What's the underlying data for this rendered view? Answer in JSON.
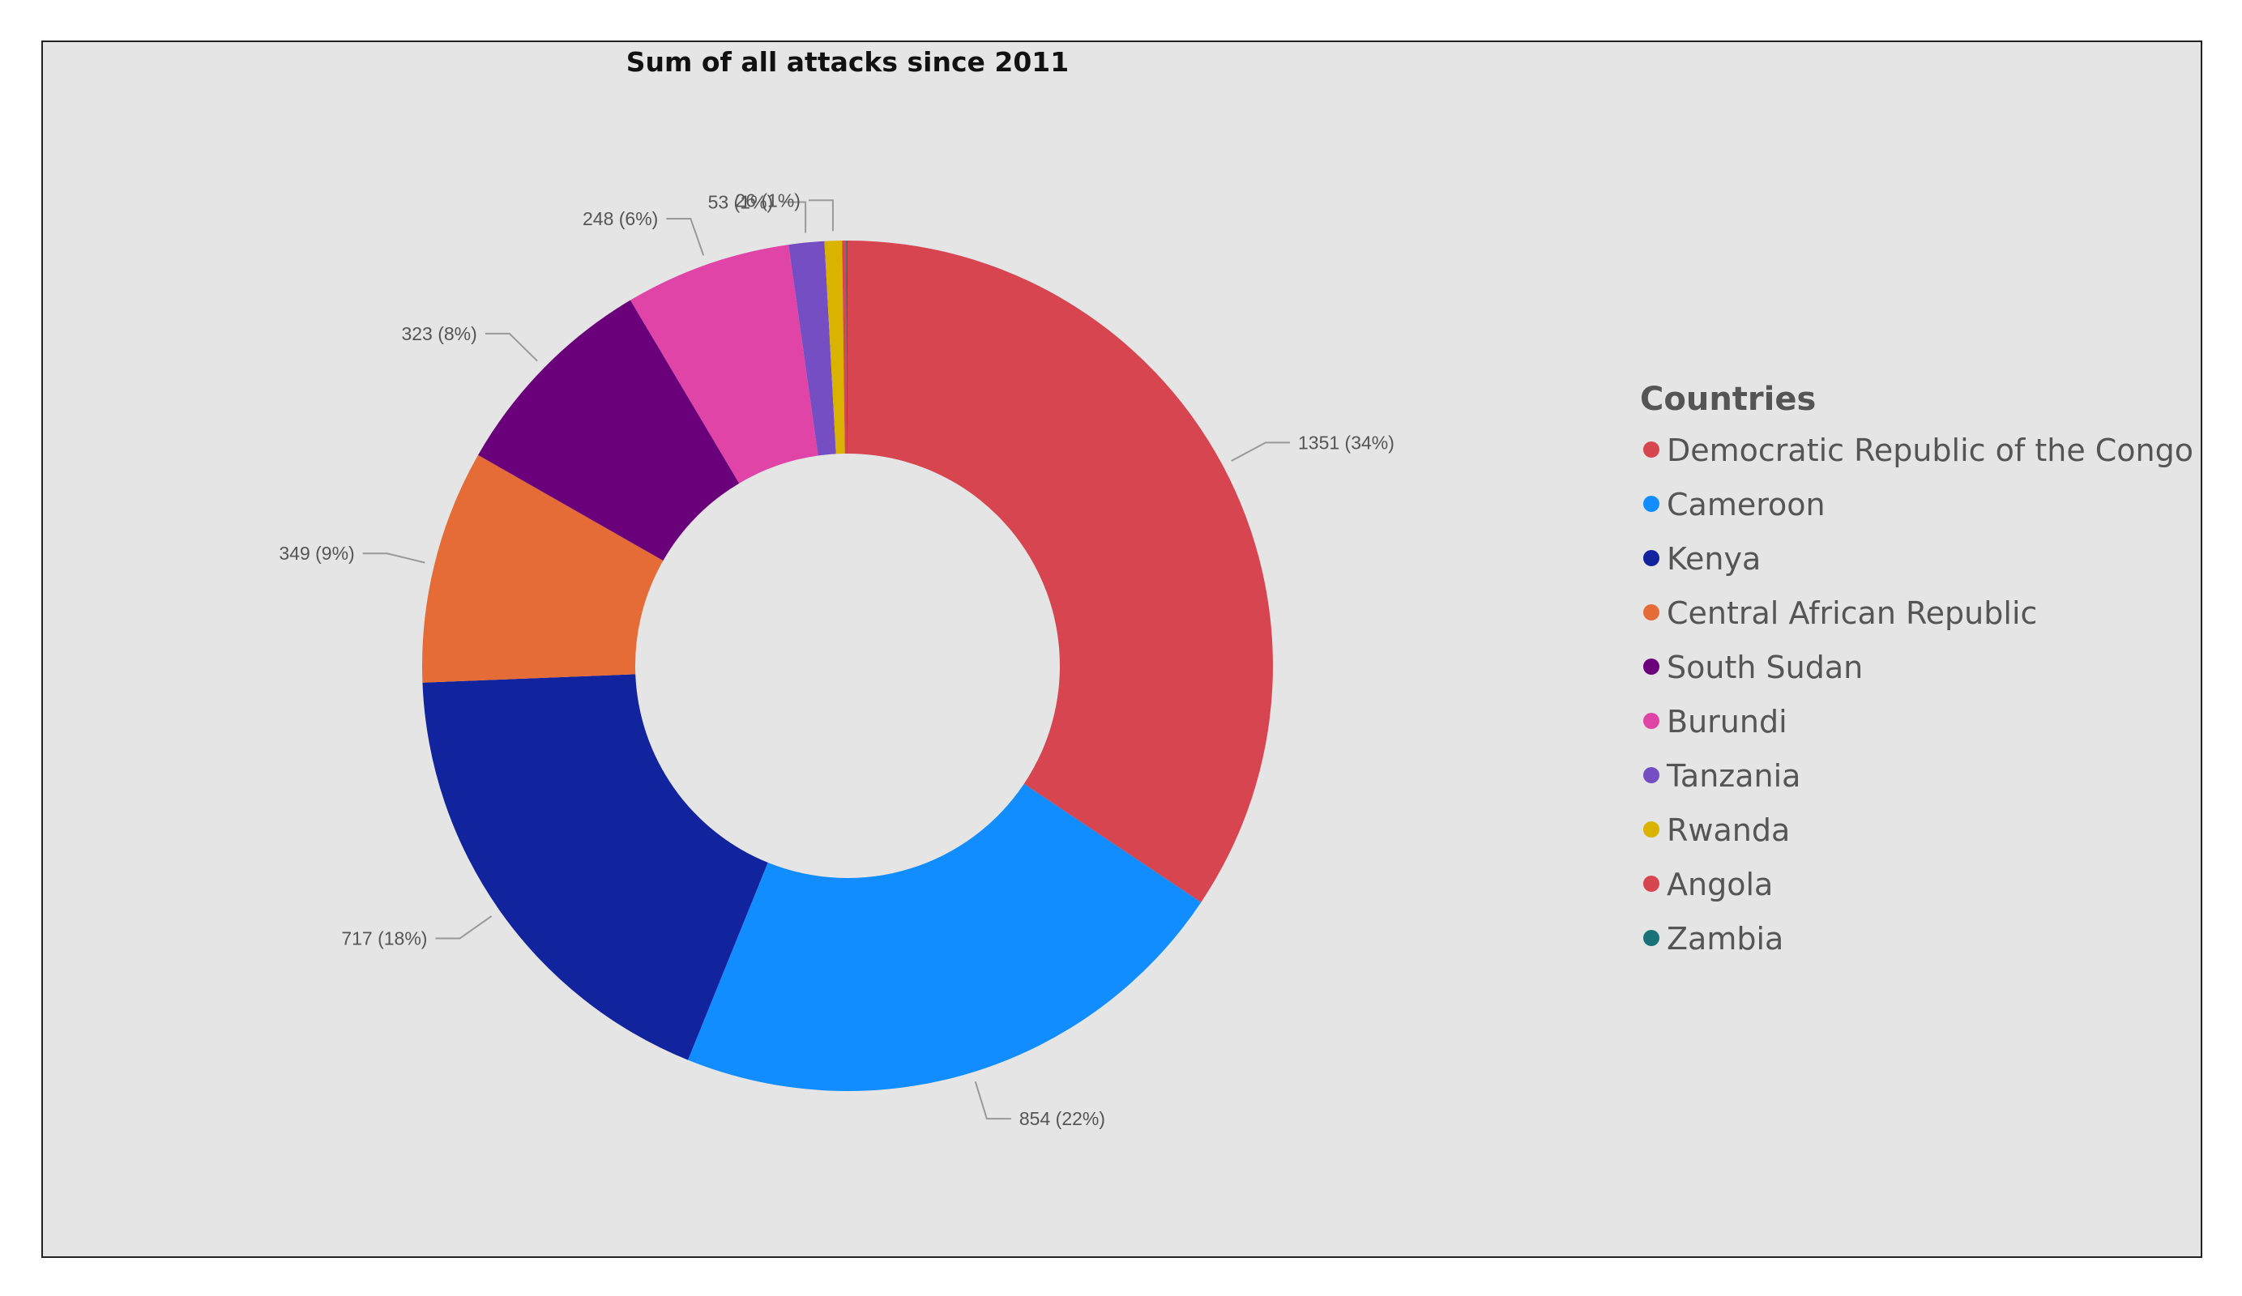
{
  "chart_data": {
    "type": "pie",
    "variant": "donut",
    "title": "Sum of all attacks since 2011",
    "legend_title": "Countries",
    "legend_position": "right",
    "slices": [
      {
        "label": "Democratic Republic of the Congo",
        "value": 1351,
        "data_label": "1351 (34%)",
        "color": "#d64550"
      },
      {
        "label": "Cameroon",
        "value": 854,
        "data_label": "854 (22%)",
        "color": "#118dff"
      },
      {
        "label": "Kenya",
        "value": 717,
        "data_label": "717 (18%)",
        "color": "#12239e"
      },
      {
        "label": "Central African Republic",
        "value": 349,
        "data_label": "349 (9%)",
        "color": "#e66c37"
      },
      {
        "label": "South Sudan",
        "value": 323,
        "data_label": "323 (8%)",
        "color": "#6b007b"
      },
      {
        "label": "Burundi",
        "value": 248,
        "data_label": "248 (6%)",
        "color": "#e044a7"
      },
      {
        "label": "Tanzania",
        "value": 53,
        "data_label": "53 (1%)",
        "color": "#744ec2"
      },
      {
        "label": "Rwanda",
        "value": 26,
        "data_label": "26 (1%)",
        "color": "#d9b300"
      },
      {
        "label": "Angola",
        "value": 6,
        "data_label": null,
        "color": "#d64550"
      },
      {
        "label": "Zambia",
        "value": 2,
        "data_label": null,
        "color": "#197278"
      }
    ]
  }
}
